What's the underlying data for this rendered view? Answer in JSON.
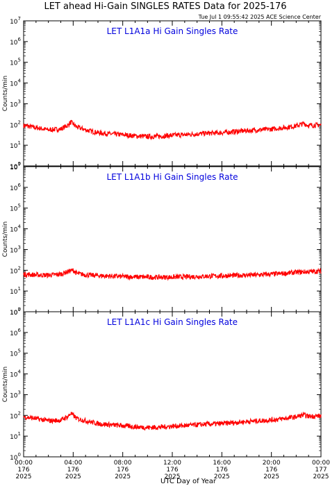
{
  "page": {
    "title": "LET ahead Hi-Gain SINGLES RATES Data for 2025-176",
    "timestamp": "Tue Jul  1 09:55:42 2025 ACE Science Center",
    "xlabel": "UTC Day of Year"
  },
  "chart_data": [
    {
      "type": "line",
      "title": "LET L1A1a Hi Gain Singles Rate",
      "ylabel": "Counts/min",
      "yscale": "log",
      "ylim": [
        1,
        10000000
      ],
      "xlim": [
        0,
        24
      ],
      "x_unit": "hours UTC on day 176 of 2025",
      "color": "#ff0000",
      "series": [
        {
          "x": [
            0,
            1,
            2,
            3,
            3.6,
            3.8,
            4.0,
            4.3,
            5,
            6,
            7,
            8,
            9,
            10,
            11,
            12,
            13,
            14,
            15,
            16,
            17,
            18,
            19,
            20,
            21,
            22,
            22.6,
            23,
            24
          ],
          "values": [
            90,
            70,
            55,
            60,
            95,
            130,
            105,
            75,
            55,
            40,
            35,
            32,
            28,
            26,
            27,
            30,
            32,
            35,
            38,
            40,
            45,
            50,
            55,
            60,
            70,
            85,
            110,
            90,
            95
          ]
        }
      ]
    },
    {
      "type": "line",
      "title": "LET L1A1b Hi Gain Singles Rate",
      "ylabel": "Counts/min",
      "yscale": "log",
      "ylim": [
        1,
        10000000
      ],
      "xlim": [
        0,
        24
      ],
      "color": "#ff0000",
      "series": [
        {
          "x": [
            0,
            1,
            2,
            3,
            3.8,
            4.0,
            4.3,
            5,
            6,
            7,
            8,
            9,
            10,
            11,
            12,
            13,
            14,
            15,
            16,
            17,
            18,
            19,
            20,
            21,
            22,
            23,
            24
          ],
          "values": [
            65,
            60,
            58,
            65,
            95,
            100,
            70,
            60,
            55,
            52,
            50,
            48,
            47,
            46,
            47,
            48,
            50,
            52,
            54,
            56,
            58,
            60,
            65,
            70,
            80,
            85,
            90
          ]
        }
      ]
    },
    {
      "type": "line",
      "title": "LET L1A1c Hi Gain Singles Rate",
      "ylabel": "Counts/min",
      "yscale": "log",
      "ylim": [
        1,
        10000000
      ],
      "xlim": [
        0,
        24
      ],
      "color": "#ff0000",
      "series": [
        {
          "x": [
            0,
            1,
            2,
            3,
            3.6,
            3.8,
            4.0,
            4.3,
            5,
            6,
            7,
            8,
            9,
            10,
            11,
            12,
            13,
            14,
            15,
            16,
            17,
            18,
            19,
            20,
            21,
            22,
            22.6,
            23,
            24
          ],
          "values": [
            85,
            70,
            55,
            58,
            90,
            125,
            100,
            70,
            55,
            40,
            35,
            32,
            28,
            26,
            27,
            30,
            32,
            35,
            38,
            40,
            45,
            50,
            55,
            60,
            70,
            85,
            105,
            90,
            95
          ]
        }
      ]
    }
  ],
  "y_ticks": [
    {
      "base": "10",
      "exp": "0"
    },
    {
      "base": "10",
      "exp": "1"
    },
    {
      "base": "10",
      "exp": "2"
    },
    {
      "base": "10",
      "exp": "3"
    },
    {
      "base": "10",
      "exp": "4"
    },
    {
      "base": "10",
      "exp": "5"
    },
    {
      "base": "10",
      "exp": "6"
    },
    {
      "base": "10",
      "exp": "7"
    }
  ],
  "x_ticks": [
    {
      "time": "00:00",
      "doy": "176",
      "year": "2025"
    },
    {
      "time": "04:00",
      "doy": "176",
      "year": "2025"
    },
    {
      "time": "08:00",
      "doy": "176",
      "year": "2025"
    },
    {
      "time": "12:00",
      "doy": "176",
      "year": "2025"
    },
    {
      "time": "16:00",
      "doy": "176",
      "year": "2025"
    },
    {
      "time": "20:00",
      "doy": "176",
      "year": "2025"
    },
    {
      "time": "00:00",
      "doy": "177",
      "year": "2025"
    }
  ]
}
